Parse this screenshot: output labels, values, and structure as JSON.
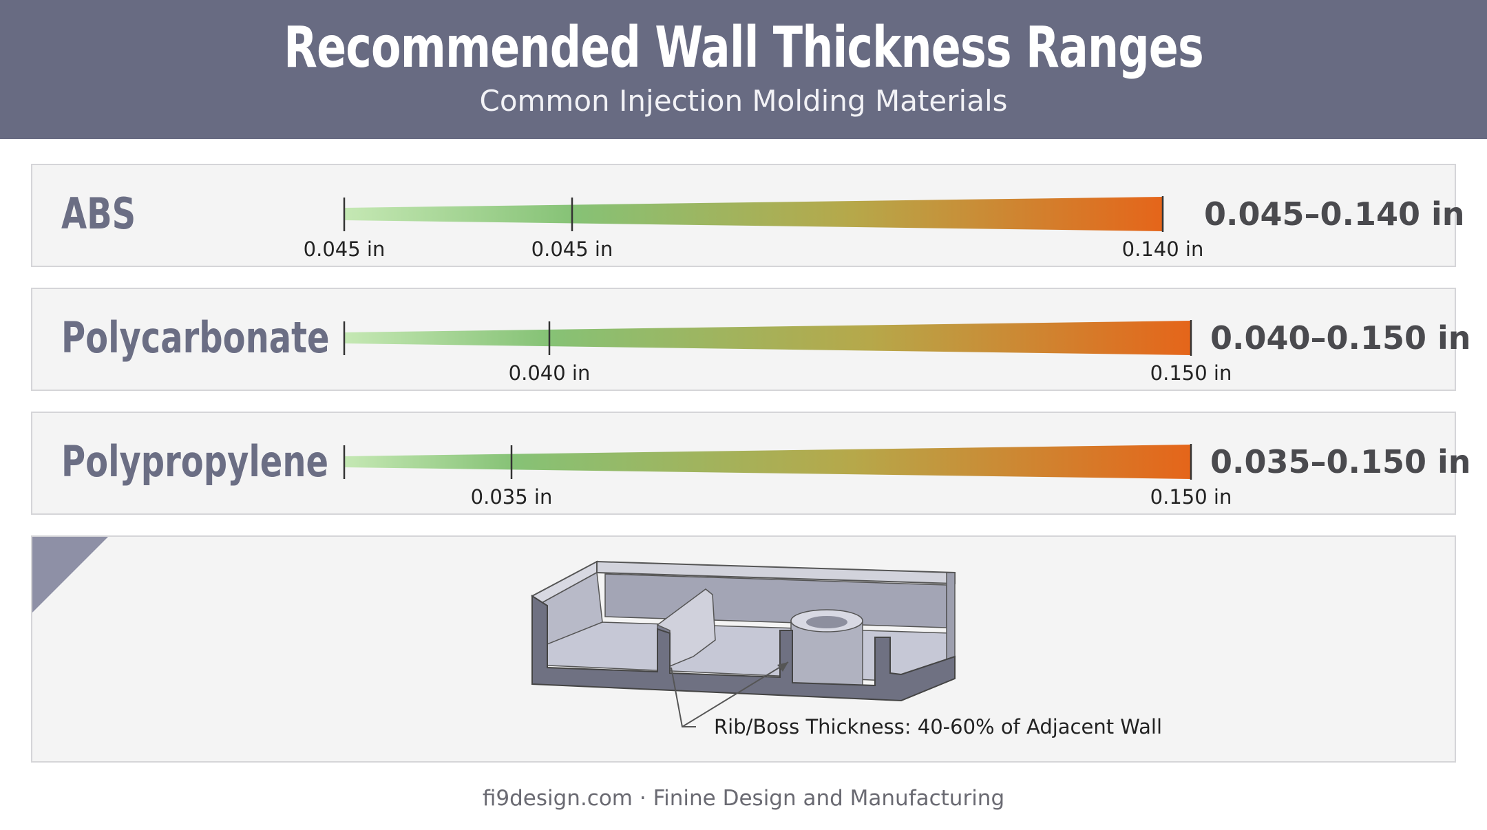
{
  "header": {
    "title": "Recommended Wall Thickness Ranges",
    "subtitle": "Common Injection Molding Materials",
    "background_color": "#686b82"
  },
  "materials": [
    {
      "name": "ABS",
      "min": 0.045,
      "max": 0.14,
      "range_label": "0.045–0.140 in",
      "ticks": [
        "0.045 in",
        "0.045 in",
        "0.140 in"
      ]
    },
    {
      "name": "Polycarbonate",
      "min": 0.04,
      "max": 0.15,
      "range_label": "0.040–0.150 in",
      "ticks": [
        "0.040 in",
        "0.150 in"
      ]
    },
    {
      "name": "Polypropylene",
      "min": 0.035,
      "max": 0.15,
      "range_label": "0.035–0.150 in",
      "ticks": [
        "0.035 in",
        "0.150 in"
      ]
    }
  ],
  "bar_colors": {
    "light_green": "#c5e8b4",
    "green": "#7dbd6e",
    "olive": "#b6a84a",
    "orange": "#e5651a"
  },
  "rib_diagram": {
    "callout": "Rib/Boss Thickness: 40-60% of Adjacent Wall"
  },
  "footer": "fi9design.com · Finine Design and Manufacturing"
}
